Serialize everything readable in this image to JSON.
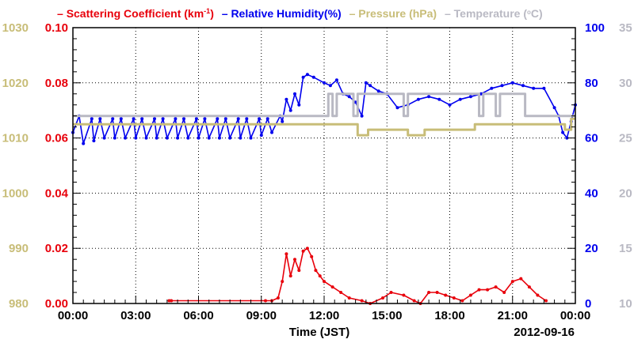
{
  "chart_data": {
    "type": "line",
    "legend": {
      "scattering": {
        "dash": "–",
        "label": "Scattering Coefficient (km",
        "sup": "-1",
        "close": ")"
      },
      "humidity": {
        "dash": "–",
        "label": "Relative Humidity(%)"
      },
      "pressure": {
        "dash": "–",
        "label": "Pressure (hPa)"
      },
      "temperature": {
        "dash": "–",
        "label": "Temperature (",
        "close": "C)"
      }
    },
    "xlabel": "Time (JST)",
    "date_label": "2012-09-16",
    "x_ticks": [
      "00:00",
      "03:00",
      "06:00",
      "09:00",
      "12:00",
      "15:00",
      "18:00",
      "21:00",
      "00:00"
    ],
    "axes": {
      "scattering": {
        "ticks": [
          "0.00",
          "0.02",
          "0.04",
          "0.06",
          "0.08",
          "0.10"
        ],
        "range": [
          0,
          0.1
        ],
        "color": "#e8000b"
      },
      "pressure": {
        "ticks": [
          "980",
          "990",
          "1000",
          "1010",
          "1020",
          "1030"
        ],
        "range": [
          980,
          1030
        ],
        "color": "#c8bd78"
      },
      "humidity": {
        "ticks": [
          "0",
          "20",
          "40",
          "60",
          "80",
          "100"
        ],
        "range": [
          0,
          100
        ],
        "color": "#0000ee"
      },
      "temperature": {
        "ticks": [
          "10",
          "15",
          "20",
          "25",
          "30",
          "35"
        ],
        "range": [
          10,
          35
        ],
        "color": "#b9b9c3"
      }
    },
    "grid": true,
    "series": [
      {
        "name": "Relative Humidity(%)",
        "axis": "humidity",
        "color": "#0000ee",
        "x": [
          0,
          0.3,
          0.5,
          0.9,
          1.0,
          1.3,
          1.5,
          1.9,
          2.0,
          2.3,
          2.5,
          2.9,
          3.0,
          3.3,
          3.5,
          3.9,
          4.0,
          4.3,
          4.5,
          4.9,
          5.0,
          5.3,
          5.5,
          5.9,
          6.0,
          6.3,
          6.5,
          6.9,
          7.0,
          7.3,
          7.5,
          7.9,
          8.0,
          8.3,
          8.5,
          8.9,
          9.0,
          9.3,
          9.5,
          9.9,
          10.0,
          10.2,
          10.4,
          10.6,
          10.8,
          11.0,
          11.2,
          11.5,
          12.0,
          12.3,
          12.6,
          12.9,
          13.2,
          13.5,
          13.8,
          14.0,
          14.2,
          14.6,
          15.0,
          15.5,
          16.0,
          16.5,
          17.0,
          17.5,
          18.0,
          18.5,
          19.0,
          19.5,
          20.0,
          20.5,
          21.0,
          21.5,
          22.0,
          22.5,
          23.0,
          23.2,
          23.4,
          23.6,
          23.8,
          24.0
        ],
        "y": [
          62,
          68,
          58,
          67,
          59,
          67,
          60,
          67,
          60,
          67,
          60,
          67,
          60,
          67,
          60,
          67,
          60,
          67,
          60,
          67,
          60,
          67,
          60,
          67,
          60,
          67,
          60,
          67,
          60,
          67,
          60,
          67,
          60,
          67,
          60,
          67,
          61,
          67,
          62,
          68,
          66,
          74,
          70,
          76,
          72,
          82,
          83,
          82,
          80,
          79,
          81,
          76,
          75,
          73,
          68,
          80,
          79,
          77,
          76,
          71,
          72,
          74,
          75,
          74,
          72,
          74,
          75,
          76,
          78,
          79,
          80,
          79,
          78,
          78,
          71,
          68,
          62,
          60,
          66,
          72
        ],
        "marker": "dot"
      },
      {
        "name": "Pressure (hPa)",
        "axis": "pressure",
        "color": "#c8bd78",
        "x": [
          0,
          10.1,
          10.1,
          13.6,
          13.6,
          14.1,
          14.1,
          16.0,
          16.0,
          16.8,
          16.8,
          18.0,
          18.0,
          19.2,
          19.2,
          23.5,
          23.5,
          23.8,
          23.8,
          24.0
        ],
        "y": [
          1012.5,
          1012.5,
          1012.5,
          1012.5,
          1010.5,
          1010.5,
          1011.5,
          1011.5,
          1010.5,
          1010.5,
          1011.5,
          1011.5,
          1011.5,
          1011.5,
          1012.5,
          1012.5,
          1011.5,
          1011.5,
          1013.5,
          1013.5
        ]
      },
      {
        "name": "Temperature (C)",
        "axis": "temperature",
        "color": "#b9b9c3",
        "x": [
          0,
          12.2,
          12.2,
          12.4,
          12.4,
          12.6,
          12.6,
          13.4,
          13.4,
          13.6,
          13.6,
          15.8,
          15.8,
          16.0,
          16.0,
          19.4,
          19.4,
          19.6,
          19.6,
          20.2,
          20.2,
          20.4,
          20.4,
          21.6,
          21.6,
          23.8,
          24.0
        ],
        "y": [
          27,
          27,
          29,
          29,
          27,
          27,
          29,
          29,
          27,
          27,
          29,
          29,
          27,
          27,
          29,
          29,
          27,
          27,
          29,
          29,
          27,
          27,
          29,
          29,
          27,
          27,
          27
        ]
      },
      {
        "name": "Scattering Coefficient (km-1)",
        "axis": "scattering",
        "color": "#e8000b",
        "x": [
          4.6,
          4.7,
          9.2,
          9.5,
          9.8,
          10.0,
          10.2,
          10.4,
          10.6,
          10.8,
          11.0,
          11.2,
          11.4,
          11.6,
          11.8,
          12.0,
          12.4,
          12.8,
          13.2,
          13.8,
          14.2,
          14.8,
          15.2,
          15.8,
          16.3,
          16.6,
          17.0,
          17.4,
          17.8,
          18.2,
          18.6,
          19.0,
          19.4,
          19.8,
          20.2,
          20.6,
          21.0,
          21.4,
          21.8,
          22.2,
          22.6
        ],
        "y": [
          0.001,
          0.001,
          0.001,
          0.001,
          0.002,
          0.008,
          0.018,
          0.01,
          0.016,
          0.012,
          0.019,
          0.02,
          0.017,
          0.012,
          0.01,
          0.008,
          0.006,
          0.004,
          0.002,
          0.001,
          0.0,
          0.002,
          0.004,
          0.003,
          0.001,
          0.0,
          0.004,
          0.004,
          0.003,
          0.002,
          0.001,
          0.003,
          0.005,
          0.005,
          0.006,
          0.004,
          0.008,
          0.009,
          0.006,
          0.003,
          0.001
        ],
        "marker": "dot"
      }
    ]
  }
}
